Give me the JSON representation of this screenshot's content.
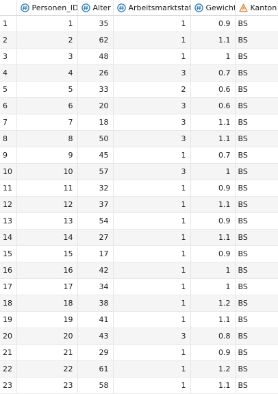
{
  "columns": [
    {
      "key": "Personen_ID",
      "label": "Personen_ID",
      "type": "numeric",
      "icon": "numeric-type-icon"
    },
    {
      "key": "Alter",
      "label": "Alter",
      "type": "numeric",
      "icon": "numeric-type-icon"
    },
    {
      "key": "Arbeitsmarktstatus",
      "label": "Arbeitsmarktstatus",
      "type": "numeric",
      "icon": "numeric-type-icon"
    },
    {
      "key": "Gewicht",
      "label": "Gewicht",
      "type": "numeric",
      "icon": "numeric-type-icon"
    },
    {
      "key": "Kanton",
      "label": "Kanton",
      "type": "character",
      "icon": "character-type-icon"
    }
  ],
  "colors": {
    "numeric_icon": "#2a7ab0",
    "character_icon": "#d9822b"
  },
  "rows": [
    {
      "n": "1",
      "Personen_ID": "1",
      "Alter": "35",
      "Arbeitsmarktstatus": "1",
      "Gewicht": "0.9",
      "Kanton": "BS"
    },
    {
      "n": "2",
      "Personen_ID": "2",
      "Alter": "62",
      "Arbeitsmarktstatus": "1",
      "Gewicht": "1.1",
      "Kanton": "BS"
    },
    {
      "n": "3",
      "Personen_ID": "3",
      "Alter": "48",
      "Arbeitsmarktstatus": "1",
      "Gewicht": "1",
      "Kanton": "BS"
    },
    {
      "n": "4",
      "Personen_ID": "4",
      "Alter": "26",
      "Arbeitsmarktstatus": "3",
      "Gewicht": "0.7",
      "Kanton": "BS"
    },
    {
      "n": "5",
      "Personen_ID": "5",
      "Alter": "33",
      "Arbeitsmarktstatus": "2",
      "Gewicht": "0.6",
      "Kanton": "BS"
    },
    {
      "n": "6",
      "Personen_ID": "6",
      "Alter": "20",
      "Arbeitsmarktstatus": "3",
      "Gewicht": "0.6",
      "Kanton": "BS"
    },
    {
      "n": "7",
      "Personen_ID": "7",
      "Alter": "18",
      "Arbeitsmarktstatus": "3",
      "Gewicht": "1.1",
      "Kanton": "BS"
    },
    {
      "n": "8",
      "Personen_ID": "8",
      "Alter": "50",
      "Arbeitsmarktstatus": "3",
      "Gewicht": "1.1",
      "Kanton": "BS"
    },
    {
      "n": "9",
      "Personen_ID": "9",
      "Alter": "45",
      "Arbeitsmarktstatus": "1",
      "Gewicht": "0.7",
      "Kanton": "BS"
    },
    {
      "n": "10",
      "Personen_ID": "10",
      "Alter": "57",
      "Arbeitsmarktstatus": "3",
      "Gewicht": "1",
      "Kanton": "BS"
    },
    {
      "n": "11",
      "Personen_ID": "11",
      "Alter": "32",
      "Arbeitsmarktstatus": "1",
      "Gewicht": "0.9",
      "Kanton": "BS"
    },
    {
      "n": "12",
      "Personen_ID": "12",
      "Alter": "37",
      "Arbeitsmarktstatus": "1",
      "Gewicht": "1.1",
      "Kanton": "BS"
    },
    {
      "n": "13",
      "Personen_ID": "13",
      "Alter": "54",
      "Arbeitsmarktstatus": "1",
      "Gewicht": "0.9",
      "Kanton": "BS"
    },
    {
      "n": "14",
      "Personen_ID": "14",
      "Alter": "27",
      "Arbeitsmarktstatus": "1",
      "Gewicht": "1.1",
      "Kanton": "BS"
    },
    {
      "n": "15",
      "Personen_ID": "15",
      "Alter": "17",
      "Arbeitsmarktstatus": "1",
      "Gewicht": "0.9",
      "Kanton": "BS"
    },
    {
      "n": "16",
      "Personen_ID": "16",
      "Alter": "42",
      "Arbeitsmarktstatus": "1",
      "Gewicht": "1",
      "Kanton": "BS"
    },
    {
      "n": "17",
      "Personen_ID": "17",
      "Alter": "34",
      "Arbeitsmarktstatus": "1",
      "Gewicht": "1",
      "Kanton": "BS"
    },
    {
      "n": "18",
      "Personen_ID": "18",
      "Alter": "38",
      "Arbeitsmarktstatus": "1",
      "Gewicht": "1.2",
      "Kanton": "BS"
    },
    {
      "n": "19",
      "Personen_ID": "19",
      "Alter": "41",
      "Arbeitsmarktstatus": "1",
      "Gewicht": "1.1",
      "Kanton": "BS"
    },
    {
      "n": "20",
      "Personen_ID": "20",
      "Alter": "43",
      "Arbeitsmarktstatus": "3",
      "Gewicht": "0.8",
      "Kanton": "BS"
    },
    {
      "n": "21",
      "Personen_ID": "21",
      "Alter": "29",
      "Arbeitsmarktstatus": "1",
      "Gewicht": "0.9",
      "Kanton": "BS"
    },
    {
      "n": "22",
      "Personen_ID": "22",
      "Alter": "61",
      "Arbeitsmarktstatus": "1",
      "Gewicht": "1.2",
      "Kanton": "BS"
    },
    {
      "n": "23",
      "Personen_ID": "23",
      "Alter": "58",
      "Arbeitsmarktstatus": "1",
      "Gewicht": "1.1",
      "Kanton": "BS"
    }
  ]
}
